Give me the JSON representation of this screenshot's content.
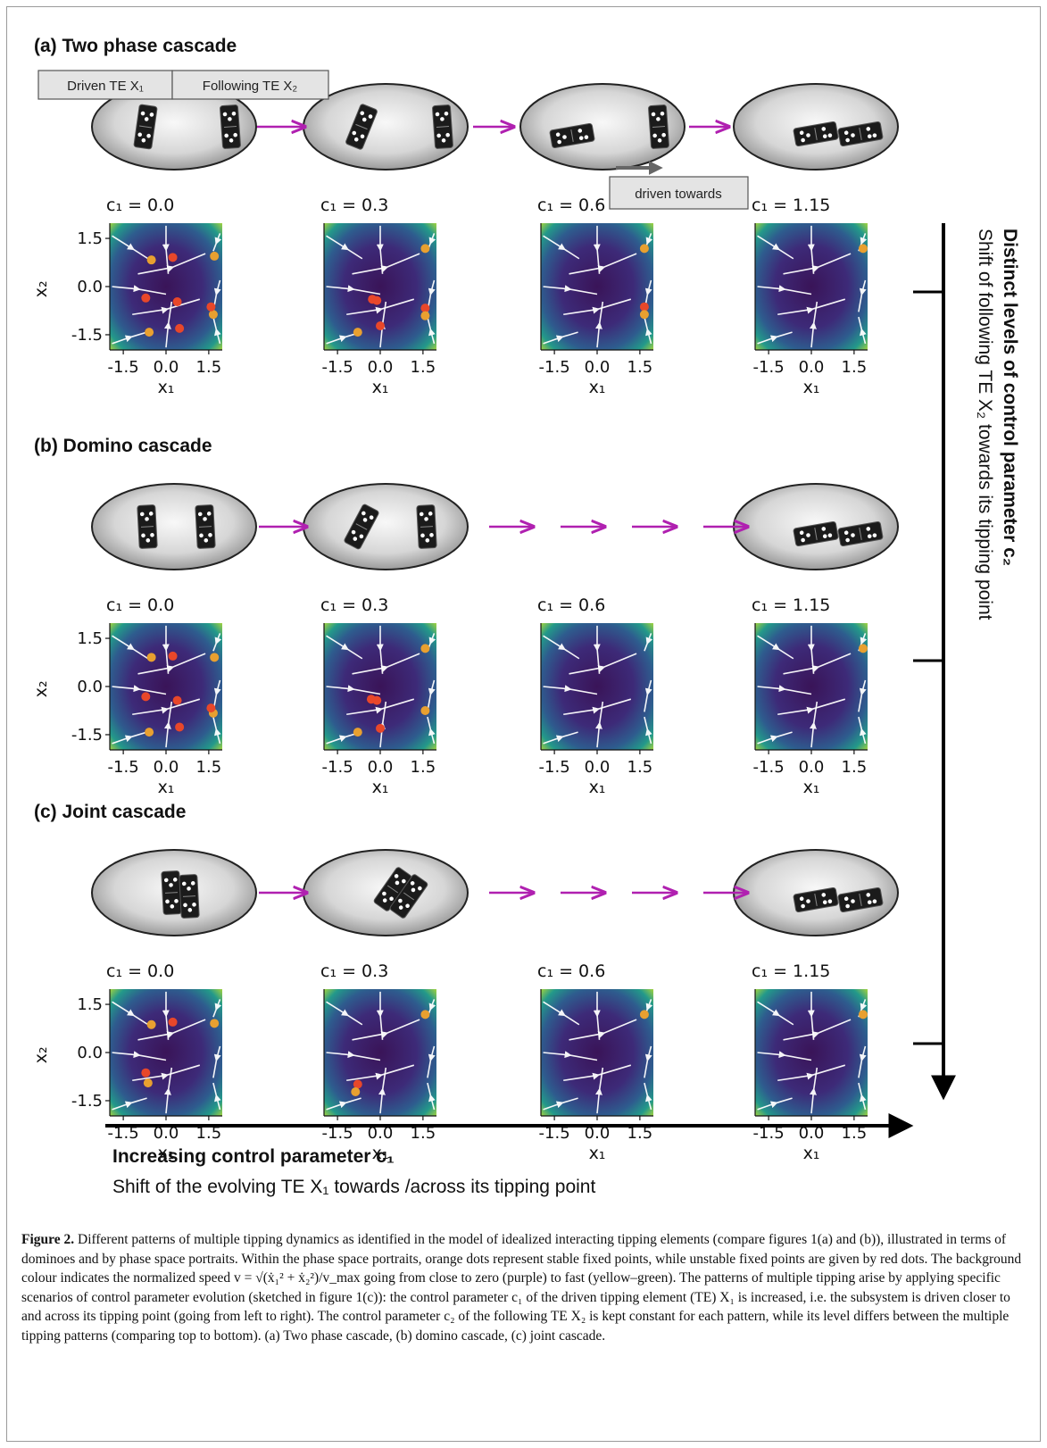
{
  "panels": [
    {
      "label": "(a) Two phase cascade",
      "c_values": [
        "c₁ = 0.0",
        "c₁ = 0.3",
        "c₁ = 0.6",
        "c₁ = 1.15"
      ],
      "boxes": {
        "driven": "Driven TE X₁",
        "following": "Following TE X₂",
        "driven_towards": "driven towards"
      }
    },
    {
      "label": "(b) Domino cascade",
      "c_values": [
        "c₁ = 0.0",
        "c₁ = 0.3",
        "c₁ = 0.6",
        "c₁ = 1.15"
      ]
    },
    {
      "label": "(c) Joint cascade",
      "c_values": [
        "c₁ = 0.0",
        "c₁ = 0.3",
        "c₁ = 0.6",
        "c₁ = 1.15"
      ]
    }
  ],
  "axes": {
    "ticks": [
      "-1.5",
      "0.0",
      "1.5"
    ],
    "xlabel": "x₁",
    "ylabel": "x₂"
  },
  "bottom_axis": {
    "title": "Increasing control parameter c₁",
    "subtitle": "Shift of the evolving TE X₁ towards /across its tipping point"
  },
  "right_axis": {
    "title": "Distinct levels of control parameter c₂",
    "subtitle": "Shift of following TE X₂ towards its tipping point"
  },
  "colors": {
    "stable": "#e8a030",
    "unstable": "#e8472a",
    "arrow": "#b020b0",
    "field_dark": "#3a1458",
    "field_edge": "#9fd43a"
  },
  "caption": {
    "label": "Figure 2.",
    "text": " Different patterns of multiple tipping dynamics as identified in the model of idealized interacting tipping elements (compare figures 1(a) and (b)), illustrated in terms of dominoes and by phase space portraits. Within the phase space portraits, orange dots represent stable fixed points, while unstable fixed points are given by red dots. The background colour indicates the normalized speed v = √(ẋ₁² + ẋ₂²)/v_max going from close to zero (purple) to fast (yellow–green). The patterns of multiple tipping arise by applying specific scenarios of control parameter evolution (sketched in figure 1(c)): the control parameter c₁ of the driven tipping element (TE) X₁ is increased, i.e. the subsystem is driven closer to and across its tipping point (going from left to right). The control parameter c₂ of the following TE X₂ is kept constant for each pattern, while its level differs between the multiple tipping patterns (comparing top to bottom). (a) Two phase cascade, (b) domino cascade, (c) joint cascade."
  }
}
